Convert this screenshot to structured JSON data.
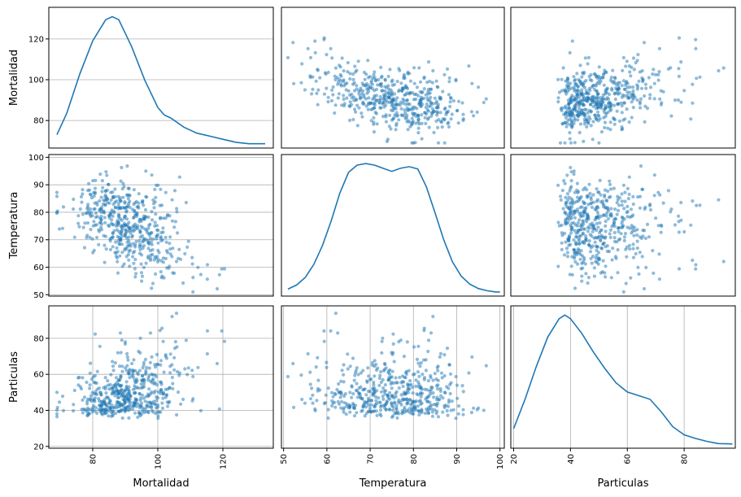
{
  "chart_data": {
    "type": "scatter",
    "variables": [
      "Mortalidad",
      "Temperatura",
      "Particulas"
    ],
    "ranges": {
      "Mortalidad": [
        66.5,
        135.5
      ],
      "Temperatura": [
        49.5,
        101
      ],
      "Particulas": [
        19,
        98
      ]
    },
    "ticks": {
      "Mortalidad": [
        80,
        100,
        120
      ],
      "Temperatura": [
        50,
        60,
        70,
        80,
        90,
        100
      ],
      "Particulas": [
        20,
        40,
        60,
        80
      ]
    },
    "marker_color": "#1f77b4",
    "grid": true,
    "n_points": 508,
    "kde": {
      "Mortalidad": {
        "x": [
          69,
          72,
          76,
          80,
          84,
          86,
          88,
          92,
          96,
          100,
          102,
          104,
          108,
          112,
          116,
          120,
          124,
          128,
          133
        ],
        "y": [
          0.005,
          0.012,
          0.025,
          0.036,
          0.043,
          0.044,
          0.043,
          0.034,
          0.023,
          0.014,
          0.0115,
          0.0105,
          0.0075,
          0.0055,
          0.0045,
          0.0035,
          0.0025,
          0.002,
          0.002
        ]
      },
      "Temperatura": {
        "x": [
          51,
          53,
          55,
          57,
          59,
          61,
          63,
          65,
          67,
          69,
          71,
          73,
          75,
          77,
          79,
          81,
          83,
          85,
          87,
          89,
          91,
          93,
          95,
          97,
          99,
          100
        ],
        "y": [
          0.001,
          0.0023,
          0.0047,
          0.0089,
          0.0149,
          0.0227,
          0.0315,
          0.0381,
          0.0404,
          0.0409,
          0.0404,
          0.0394,
          0.0384,
          0.0394,
          0.0399,
          0.0392,
          0.0335,
          0.0252,
          0.0167,
          0.0097,
          0.0052,
          0.0026,
          0.0012,
          0.0005,
          0.0001,
          0.0001
        ]
      },
      "Particulas": {
        "x": [
          20,
          24,
          28,
          32,
          36,
          38,
          40,
          44,
          48,
          52,
          56,
          60,
          64,
          68,
          72,
          76,
          80,
          84,
          88,
          92,
          97
        ],
        "y": [
          0.005,
          0.013,
          0.022,
          0.03,
          0.035,
          0.036,
          0.035,
          0.031,
          0.026,
          0.0215,
          0.0175,
          0.015,
          0.014,
          0.013,
          0.0095,
          0.0055,
          0.0033,
          0.0023,
          0.0015,
          0.0009,
          0.0008
        ]
      }
    }
  }
}
